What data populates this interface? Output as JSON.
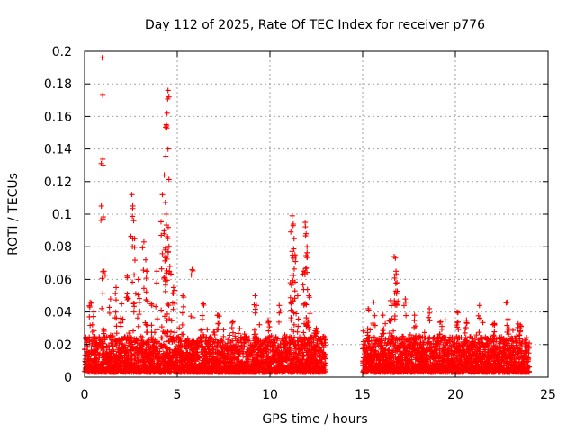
{
  "chart_data": {
    "type": "scatter",
    "title": "Day 112 of 2025, Rate Of TEC Index for receiver p776",
    "xlabel": "GPS time / hours",
    "ylabel": "ROTI / TECUs",
    "xlim": [
      0,
      25
    ],
    "ylim": [
      0,
      0.2
    ],
    "xticks": [
      0,
      5,
      10,
      15,
      20,
      25
    ],
    "yticks": [
      0,
      0.02,
      0.04,
      0.06,
      0.08,
      0.1,
      0.12,
      0.14,
      0.16,
      0.18,
      0.2
    ],
    "xtick_labels": [
      "0",
      "5",
      "10",
      "15",
      "20",
      "25"
    ],
    "ytick_labels": [
      "0",
      "0.02",
      "0.04",
      "0.06",
      "0.08",
      "0.1",
      "0.12",
      "0.14",
      "0.16",
      "0.18",
      "0.2"
    ],
    "grid": true,
    "marker": "+",
    "color": "#ff0000",
    "series": [
      {
        "name": "ROTI",
        "segments": [
          [
            0,
            13
          ],
          [
            15,
            24
          ]
        ],
        "baseline_range": [
          0.003,
          0.025
        ],
        "peaks": [
          {
            "x": 0.95,
            "y": 0.196
          },
          {
            "x": 0.98,
            "y": 0.173
          },
          {
            "x": 1.0,
            "y": 0.13
          },
          {
            "x": 1.05,
            "y": 0.065
          },
          {
            "x": 0.3,
            "y": 0.046
          },
          {
            "x": 0.5,
            "y": 0.04
          },
          {
            "x": 1.4,
            "y": 0.048
          },
          {
            "x": 1.7,
            "y": 0.055
          },
          {
            "x": 2.0,
            "y": 0.045
          },
          {
            "x": 2.3,
            "y": 0.062
          },
          {
            "x": 2.55,
            "y": 0.112
          },
          {
            "x": 2.6,
            "y": 0.105
          },
          {
            "x": 2.65,
            "y": 0.096
          },
          {
            "x": 2.7,
            "y": 0.085
          },
          {
            "x": 2.9,
            "y": 0.06
          },
          {
            "x": 3.2,
            "y": 0.083
          },
          {
            "x": 3.3,
            "y": 0.072
          },
          {
            "x": 3.35,
            "y": 0.065
          },
          {
            "x": 3.6,
            "y": 0.045
          },
          {
            "x": 3.9,
            "y": 0.065
          },
          {
            "x": 4.2,
            "y": 0.112
          },
          {
            "x": 4.3,
            "y": 0.124
          },
          {
            "x": 4.4,
            "y": 0.155
          },
          {
            "x": 4.45,
            "y": 0.162
          },
          {
            "x": 4.5,
            "y": 0.176
          },
          {
            "x": 4.55,
            "y": 0.172
          },
          {
            "x": 4.5,
            "y": 0.14
          },
          {
            "x": 4.4,
            "y": 0.1
          },
          {
            "x": 4.35,
            "y": 0.078
          },
          {
            "x": 4.6,
            "y": 0.068
          },
          {
            "x": 4.8,
            "y": 0.055
          },
          {
            "x": 5.3,
            "y": 0.05
          },
          {
            "x": 5.8,
            "y": 0.066
          },
          {
            "x": 6.4,
            "y": 0.045
          },
          {
            "x": 7.2,
            "y": 0.038
          },
          {
            "x": 8.0,
            "y": 0.034
          },
          {
            "x": 9.2,
            "y": 0.05
          },
          {
            "x": 9.9,
            "y": 0.035
          },
          {
            "x": 10.5,
            "y": 0.044
          },
          {
            "x": 11.1,
            "y": 0.058
          },
          {
            "x": 11.2,
            "y": 0.099
          },
          {
            "x": 11.25,
            "y": 0.093
          },
          {
            "x": 11.3,
            "y": 0.085
          },
          {
            "x": 11.35,
            "y": 0.075
          },
          {
            "x": 11.5,
            "y": 0.05
          },
          {
            "x": 11.8,
            "y": 0.065
          },
          {
            "x": 11.9,
            "y": 0.095
          },
          {
            "x": 11.95,
            "y": 0.088
          },
          {
            "x": 12.0,
            "y": 0.08
          },
          {
            "x": 12.1,
            "y": 0.05
          },
          {
            "x": 12.5,
            "y": 0.03
          },
          {
            "x": 15.3,
            "y": 0.042
          },
          {
            "x": 15.6,
            "y": 0.046
          },
          {
            "x": 16.1,
            "y": 0.038
          },
          {
            "x": 16.5,
            "y": 0.047
          },
          {
            "x": 16.7,
            "y": 0.074
          },
          {
            "x": 16.8,
            "y": 0.065
          },
          {
            "x": 16.85,
            "y": 0.058
          },
          {
            "x": 17.3,
            "y": 0.048
          },
          {
            "x": 17.8,
            "y": 0.038
          },
          {
            "x": 18.6,
            "y": 0.042
          },
          {
            "x": 19.2,
            "y": 0.034
          },
          {
            "x": 20.1,
            "y": 0.04
          },
          {
            "x": 20.6,
            "y": 0.035
          },
          {
            "x": 21.3,
            "y": 0.044
          },
          {
            "x": 22.1,
            "y": 0.033
          },
          {
            "x": 22.8,
            "y": 0.046
          },
          {
            "x": 23.5,
            "y": 0.032
          }
        ]
      }
    ]
  }
}
